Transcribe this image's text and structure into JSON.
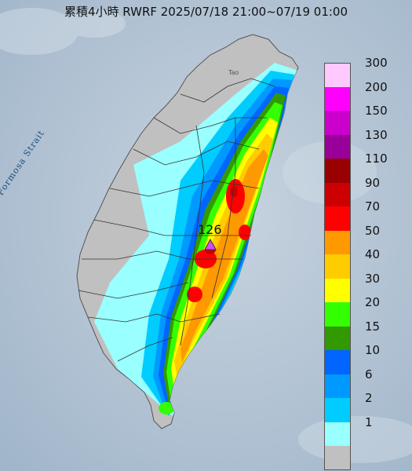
{
  "title": "累積4小時 RWRF 2025/07/18 21:00~07/19 01:00",
  "strait_label": "Formosa Strait",
  "place_label": "Tao",
  "max_marker": {
    "value": "126",
    "icon": "triangle-icon",
    "color": "#d24bff"
  },
  "legend": [
    {
      "label": "300",
      "color": "#ffc8ff"
    },
    {
      "label": "200",
      "color": "#ff00ff"
    },
    {
      "label": "150",
      "color": "#cc00cc"
    },
    {
      "label": "130",
      "color": "#990099"
    },
    {
      "label": "110",
      "color": "#990000"
    },
    {
      "label": "90",
      "color": "#cc0000"
    },
    {
      "label": "70",
      "color": "#ff0000"
    },
    {
      "label": "50",
      "color": "#ff9900"
    },
    {
      "label": "40",
      "color": "#ffcc00"
    },
    {
      "label": "30",
      "color": "#ffff00"
    },
    {
      "label": "20",
      "color": "#33ff00"
    },
    {
      "label": "15",
      "color": "#339900"
    },
    {
      "label": "10",
      "color": "#0066ff"
    },
    {
      "label": "6",
      "color": "#0099ff"
    },
    {
      "label": "2",
      "color": "#00ccff"
    },
    {
      "label": "1",
      "color": "#99ffff"
    },
    {
      "label": "",
      "color": "#c0c0c0"
    }
  ]
}
